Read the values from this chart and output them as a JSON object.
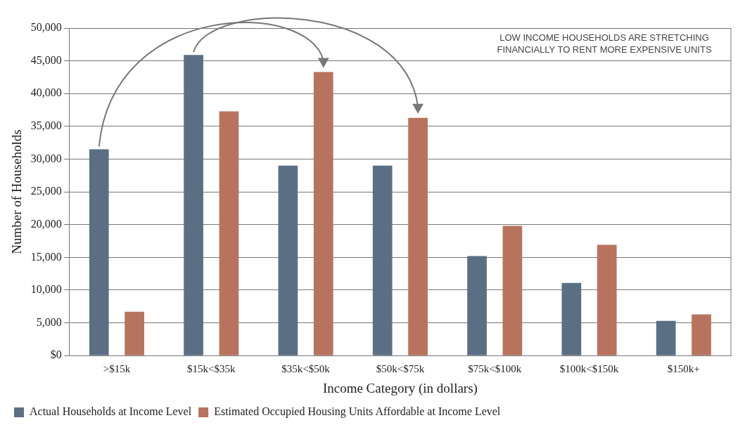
{
  "chart_data": {
    "type": "bar",
    "xlabel": "Income Category (in dollars)",
    "ylabel": "Number of Households",
    "categories": [
      ">$15k",
      "$15k<$35k",
      "$35k<$50k",
      "$50k<$75k",
      "$75k<$100k",
      "$100k<$150k",
      "$150k+"
    ],
    "series": [
      {
        "name": "Actual Households at Income Level",
        "color": "#5b6f84",
        "values": [
          31500,
          45900,
          29000,
          29000,
          15200,
          11100,
          5300
        ]
      },
      {
        "name": "Estimated Occupied Housing Units Affordable at Income Level",
        "color": "#b8735e",
        "values": [
          6700,
          37300,
          43300,
          36300,
          19800,
          16900,
          6300
        ]
      }
    ],
    "ylim": [
      0,
      50000
    ],
    "yticks": [
      {
        "value": 0,
        "label": "$0"
      },
      {
        "value": 5000,
        "label": "5,000"
      },
      {
        "value": 10000,
        "label": "10,000"
      },
      {
        "value": 15000,
        "label": "15,000"
      },
      {
        "value": 20000,
        "label": "20,000"
      },
      {
        "value": 25000,
        "label": "25,000"
      },
      {
        "value": 30000,
        "label": "30,000"
      },
      {
        "value": 35000,
        "label": "35,000"
      },
      {
        "value": 40000,
        "label": "40,000"
      },
      {
        "value": 45000,
        "label": "45,000"
      },
      {
        "value": 50000,
        "label": "50,000"
      }
    ],
    "grid": "y",
    "legend": "bottom",
    "annotations": [
      "LOW INCOME HOUSEHOLDS ARE STRETCHING FINANCIALLY TO RENT MORE EXPENSIVE UNITS"
    ]
  }
}
